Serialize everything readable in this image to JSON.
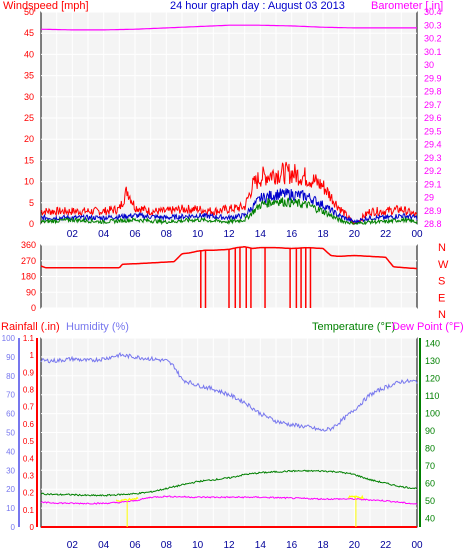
{
  "header": {
    "title": "24 hour graph day : August 03 2013",
    "left_label": "Windspeed [mph]",
    "right_label": "Barometer [.in]"
  },
  "colors": {
    "background": "#ffffff",
    "plot_background": "#f4f4f4",
    "frame": "#000000",
    "grid": "#ffffff",
    "red": "#ff0000",
    "blue": "#0000cc",
    "green": "#008000",
    "magenta": "#ff00ff",
    "humidity": "#7777ee",
    "yellow": "#ffff00",
    "tick_text": "#000099"
  },
  "labels": {
    "rainfall": "Rainfall (.in)",
    "humidity": "Humidity (%)",
    "temperature": "Temperature (°F)",
    "dewpoint": "Dew Point (°F)"
  },
  "chart_data": [
    {
      "type": "line",
      "name": "wind",
      "title": "24 hour graph day : August 03 2013",
      "ylabel": "Windspeed [mph]",
      "y2label": "Barometer [.in]",
      "x_ticks": [
        "02",
        "04",
        "06",
        "08",
        "10",
        "12",
        "14",
        "16",
        "18",
        "20",
        "22",
        "00"
      ],
      "y_ticks": [
        "0",
        "5",
        "10",
        "15",
        "20",
        "25",
        "30",
        "35",
        "40",
        "45",
        "50"
      ],
      "ylim": [
        0,
        50
      ],
      "y2_ticks": [
        "28.8",
        "28.9",
        "29",
        "29.1",
        "29.2",
        "29.3",
        "29.4",
        "29.5",
        "29.6",
        "29.7",
        "29.8",
        "29.9",
        "30",
        "30.1",
        "30.2",
        "30.3",
        "30.4"
      ],
      "y2lim": [
        28.8,
        30.4
      ],
      "series": [
        {
          "color": "#ff0000",
          "hours": [
            0,
            1,
            2,
            3,
            4,
            5,
            5.5,
            6,
            7,
            8,
            9,
            10,
            11,
            12,
            13,
            13.5,
            14,
            15,
            16,
            17,
            18,
            19,
            19.5,
            20,
            21,
            22,
            23,
            24
          ],
          "values": [
            3,
            3,
            3,
            3,
            3,
            3.5,
            8,
            4,
            3,
            3,
            3.5,
            3.5,
            3,
            3.5,
            4,
            9,
            11,
            12,
            12,
            11,
            9,
            4,
            2,
            0,
            3,
            3,
            3.5,
            2
          ]
        },
        {
          "color": "#0000cc",
          "hours": [
            0,
            2,
            4,
            6,
            8,
            10,
            12,
            13,
            14,
            15,
            16,
            17,
            18,
            19,
            20,
            21,
            22,
            23,
            24
          ],
          "values": [
            1.5,
            1.5,
            1.5,
            2,
            1.5,
            2,
            1.5,
            2,
            6,
            7,
            7,
            6.5,
            4.5,
            2,
            0.5,
            1.5,
            1.5,
            2,
            1.5
          ]
        },
        {
          "color": "#008000",
          "hours": [
            0,
            2,
            4,
            6,
            8,
            10,
            12,
            13,
            14,
            15,
            16,
            17,
            18,
            19,
            20,
            21,
            22,
            23,
            24
          ],
          "values": [
            0.5,
            1,
            0.5,
            1,
            0.5,
            1,
            0.5,
            1,
            4.5,
            5.5,
            5,
            4.5,
            3,
            1,
            0,
            0.5,
            0.5,
            1,
            0.5
          ]
        },
        {
          "color": "#ff00ff",
          "axis": "barometer",
          "hours": [
            0,
            2,
            4,
            6,
            8,
            10,
            12,
            14,
            16,
            18,
            20,
            22,
            24
          ],
          "values": [
            30.27,
            30.265,
            30.265,
            30.27,
            30.28,
            30.29,
            30.3,
            30.3,
            30.295,
            30.285,
            30.28,
            30.28,
            30.28
          ]
        }
      ]
    },
    {
      "type": "line",
      "name": "wind_direction",
      "y_ticks": [
        "0",
        "90",
        "180",
        "270",
        "360"
      ],
      "ylim": [
        0,
        360
      ],
      "compass": [
        "N",
        "W",
        "S",
        "E",
        "N"
      ],
      "series": [
        {
          "color": "#ff0000",
          "hours": [
            0,
            0.3,
            5,
            5.2,
            6.5,
            8.5,
            9,
            9.5,
            10,
            10.5,
            11,
            12,
            12.5,
            13,
            13.5,
            14,
            15,
            16,
            17,
            18,
            18.5,
            19,
            20,
            21,
            22,
            22.5,
            24
          ],
          "values": [
            240,
            230,
            230,
            250,
            255,
            265,
            310,
            315,
            325,
            330,
            330,
            335,
            345,
            350,
            340,
            345,
            345,
            340,
            345,
            340,
            300,
            295,
            300,
            295,
            290,
            235,
            225
          ]
        }
      ]
    },
    {
      "type": "line",
      "name": "climate",
      "y_left_humidity_ticks": [
        "0",
        "10",
        "20",
        "30",
        "40",
        "50",
        "60",
        "70",
        "80",
        "90",
        "100"
      ],
      "y_left_rain_ticks": [
        "0",
        "0.1",
        "0.2",
        "0.3",
        "0.4",
        "0.5",
        "0.6",
        "0.7",
        "0.8",
        "0.9",
        "1",
        "1.1"
      ],
      "y_right_ticks": [
        "40",
        "50",
        "60",
        "70",
        "80",
        "90",
        "100",
        "110",
        "120",
        "130",
        "140"
      ],
      "humidity_lim": [
        0,
        100
      ],
      "rain_lim": [
        0,
        1.1
      ],
      "temp_lim": [
        35,
        143
      ],
      "series": [
        {
          "color": "#7777ee",
          "name": "Humidity (%)",
          "hours": [
            0,
            1,
            2,
            3,
            4,
            5,
            6,
            7,
            8,
            8.5,
            9,
            10,
            11,
            12,
            13,
            14,
            15,
            16,
            17,
            18,
            18.5,
            19,
            20,
            21,
            22,
            23,
            24
          ],
          "values": [
            88,
            88,
            89,
            88,
            89,
            91,
            90,
            89,
            88,
            85,
            78,
            75,
            73,
            70,
            66,
            60,
            56,
            54,
            53,
            51,
            52,
            55,
            62,
            70,
            74,
            77,
            77
          ]
        },
        {
          "color": "#008000",
          "name": "Temperature (°F)",
          "hours": [
            0,
            1,
            2,
            3,
            4,
            5,
            6,
            7,
            8,
            9,
            10,
            11,
            12,
            13,
            14,
            15,
            16,
            17,
            18,
            19,
            20,
            21,
            22,
            23,
            24
          ],
          "values": [
            54,
            53.5,
            53.5,
            53,
            53,
            53.5,
            54,
            55,
            57,
            59,
            61,
            62,
            63,
            65,
            66,
            66.5,
            67,
            67,
            67,
            66.5,
            65,
            62,
            60,
            58,
            57
          ]
        },
        {
          "color": "#ff00ff",
          "name": "Dew Point (°F)",
          "hours": [
            0,
            2,
            4,
            5,
            6,
            7,
            8,
            10,
            12,
            14,
            16,
            18,
            20,
            22,
            24
          ],
          "values": [
            49,
            48.5,
            48.5,
            49,
            50,
            52,
            52.5,
            52,
            52,
            52,
            51.5,
            51,
            51,
            50,
            48
          ]
        },
        {
          "color": "#ff0000",
          "name": "Rainfall (.in)",
          "hours": [
            0,
            24
          ],
          "values": [
            0,
            0
          ]
        }
      ]
    }
  ]
}
